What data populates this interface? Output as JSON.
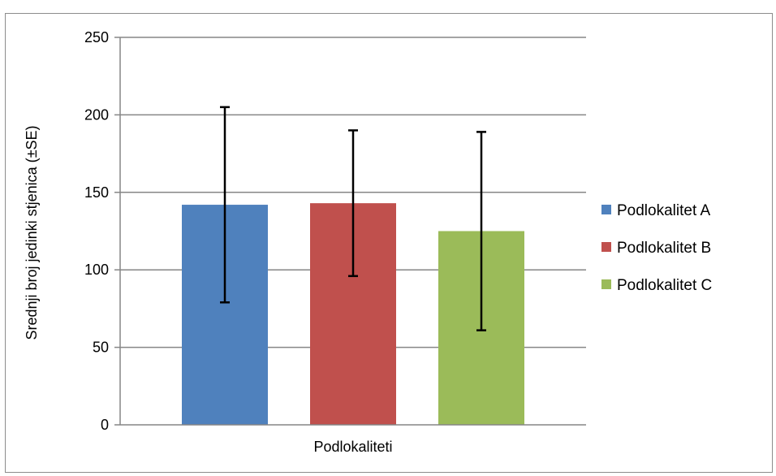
{
  "chart_data": {
    "type": "bar",
    "categories": [
      "Podlokaliteti"
    ],
    "series": [
      {
        "name": "Podlokalitet A",
        "values": [
          142
        ],
        "error": [
          63
        ],
        "color": "#4f81bd"
      },
      {
        "name": "Podlokalitet B",
        "values": [
          143
        ],
        "error": [
          47
        ],
        "color": "#c0504d"
      },
      {
        "name": "Podlokalitet C",
        "values": [
          125
        ],
        "error": [
          64
        ],
        "color": "#9bbb59"
      }
    ],
    "xlabel": "Podlokaliteti",
    "ylabel": "Srednji broj jedinki stjenica (±SE)",
    "ylim": [
      0,
      250
    ],
    "yticks": [
      0,
      50,
      100,
      150,
      200,
      250
    ],
    "grid": true,
    "legend": "right",
    "gridline_color": "#868686",
    "errorbar_color": "#000000"
  }
}
